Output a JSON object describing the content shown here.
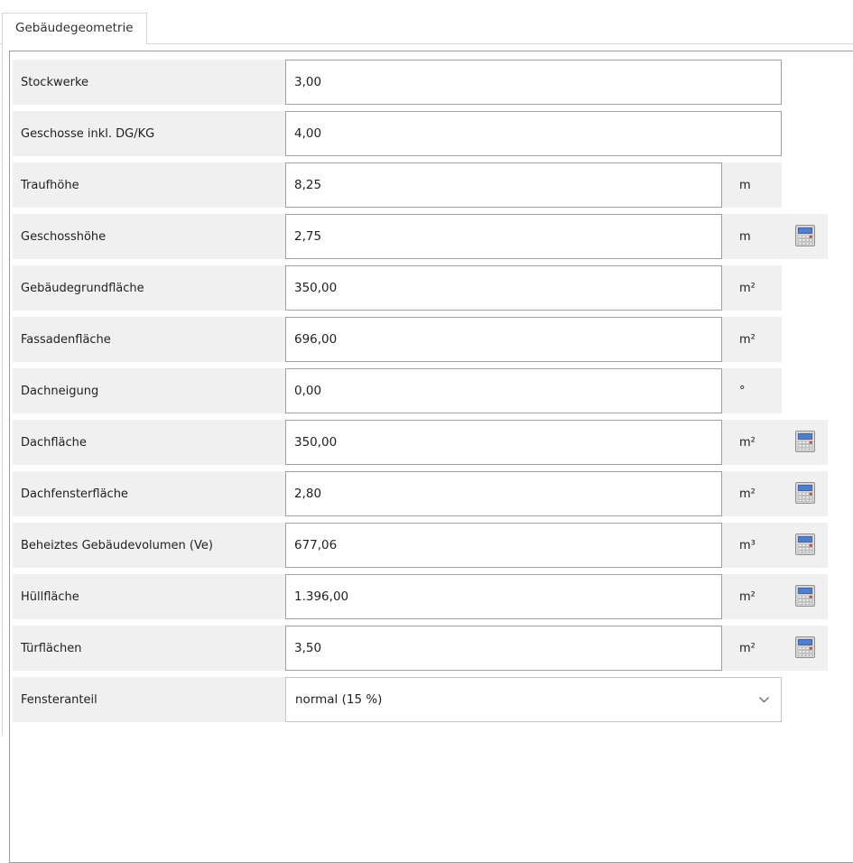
{
  "tab": {
    "label": "Gebäudegeometrie"
  },
  "form": {
    "rows": [
      {
        "label": "Stockwerke",
        "value": "3,00",
        "unit": "",
        "calculator": false,
        "control": "input"
      },
      {
        "label": "Geschosse inkl. DG/KG",
        "value": "4,00",
        "unit": "",
        "calculator": false,
        "control": "input"
      },
      {
        "label": "Traufhöhe",
        "value": "8,25",
        "unit": "m",
        "calculator": false,
        "control": "input"
      },
      {
        "label": "Geschosshöhe",
        "value": "2,75",
        "unit": "m",
        "calculator": true,
        "control": "input"
      },
      {
        "label": "Gebäudegrundfläche",
        "value": "350,00",
        "unit": "m²",
        "calculator": false,
        "control": "input"
      },
      {
        "label": "Fassadenfläche",
        "value": "696,00",
        "unit": "m²",
        "calculator": false,
        "control": "input"
      },
      {
        "label": "Dachneigung",
        "value": "0,00",
        "unit": "°",
        "calculator": false,
        "control": "input"
      },
      {
        "label": "Dachfläche",
        "value": "350,00",
        "unit": "m²",
        "calculator": true,
        "control": "input"
      },
      {
        "label": "Dachfensterfläche",
        "value": "2,80",
        "unit": "m²",
        "calculator": true,
        "control": "input"
      },
      {
        "label": "Beheiztes Gebäudevolumen (Ve)",
        "value": "677,06",
        "unit": "m³",
        "calculator": true,
        "control": "input"
      },
      {
        "label": "Hüllfläche",
        "value": "1.396,00",
        "unit": "m²",
        "calculator": true,
        "control": "input"
      },
      {
        "label": "Türflächen",
        "value": "3,50",
        "unit": "m²",
        "calculator": true,
        "control": "input"
      },
      {
        "label": "Fensteranteil",
        "value": "normal (15 %)",
        "unit": "",
        "calculator": false,
        "control": "select"
      }
    ]
  },
  "icons": {
    "calculator": "calculator-icon",
    "chevron": "chevron-down-icon"
  },
  "colors": {
    "row_background": "#f0f0f0",
    "input_border": "#a0a0a0",
    "panel_border": "#9b9b9b",
    "tab_border": "#d8d8d8",
    "calc_display_blue": "#4f7ecd",
    "calc_red_key": "#e05038"
  }
}
